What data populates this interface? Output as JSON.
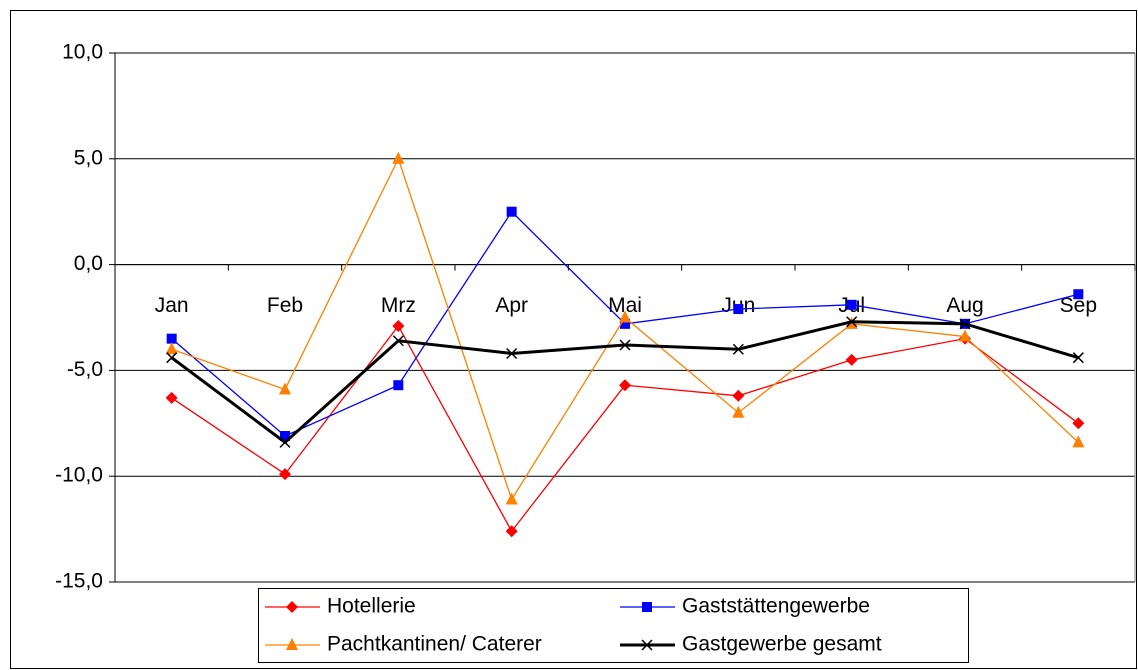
{
  "chart_data": {
    "type": "line",
    "categories": [
      "Jan",
      "Feb",
      "Mrz",
      "Apr",
      "Mai",
      "Jun",
      "Jul",
      "Aug",
      "Sep"
    ],
    "series": [
      {
        "name": "Hotellerie",
        "color": "#ff0000",
        "marker": "diamond",
        "values": [
          -6.3,
          -9.9,
          -2.9,
          -12.6,
          -5.7,
          -6.2,
          -4.5,
          -3.5,
          -7.5
        ]
      },
      {
        "name": "Gaststättengewerbe",
        "color": "#0000ff",
        "marker": "square",
        "values": [
          -3.5,
          -8.1,
          -5.7,
          2.5,
          -2.8,
          -2.1,
          -1.9,
          -2.8,
          -1.4
        ]
      },
      {
        "name": "Pachtkantinen/ Caterer",
        "color": "#ff8000",
        "marker": "triangle",
        "values": [
          -4.0,
          -5.9,
          5.0,
          -11.1,
          -2.5,
          -7.0,
          -2.8,
          -3.4,
          -8.4
        ]
      },
      {
        "name": "Gastgewerbe gesamt",
        "color": "#000000",
        "marker": "x",
        "values": [
          -4.4,
          -8.4,
          -3.6,
          -4.2,
          -3.8,
          -4.0,
          -2.7,
          -2.8,
          -4.4
        ]
      }
    ],
    "ylim": [
      -15,
      10
    ],
    "yticks": [
      {
        "value": -15,
        "label": "-15,0"
      },
      {
        "value": -10,
        "label": "-10,0"
      },
      {
        "value": -5,
        "label": "-5,0"
      },
      {
        "value": 0,
        "label": "0,0"
      },
      {
        "value": 5,
        "label": "5,0"
      },
      {
        "value": 10,
        "label": "10,0"
      }
    ],
    "grid": true,
    "legend": "bottom"
  }
}
